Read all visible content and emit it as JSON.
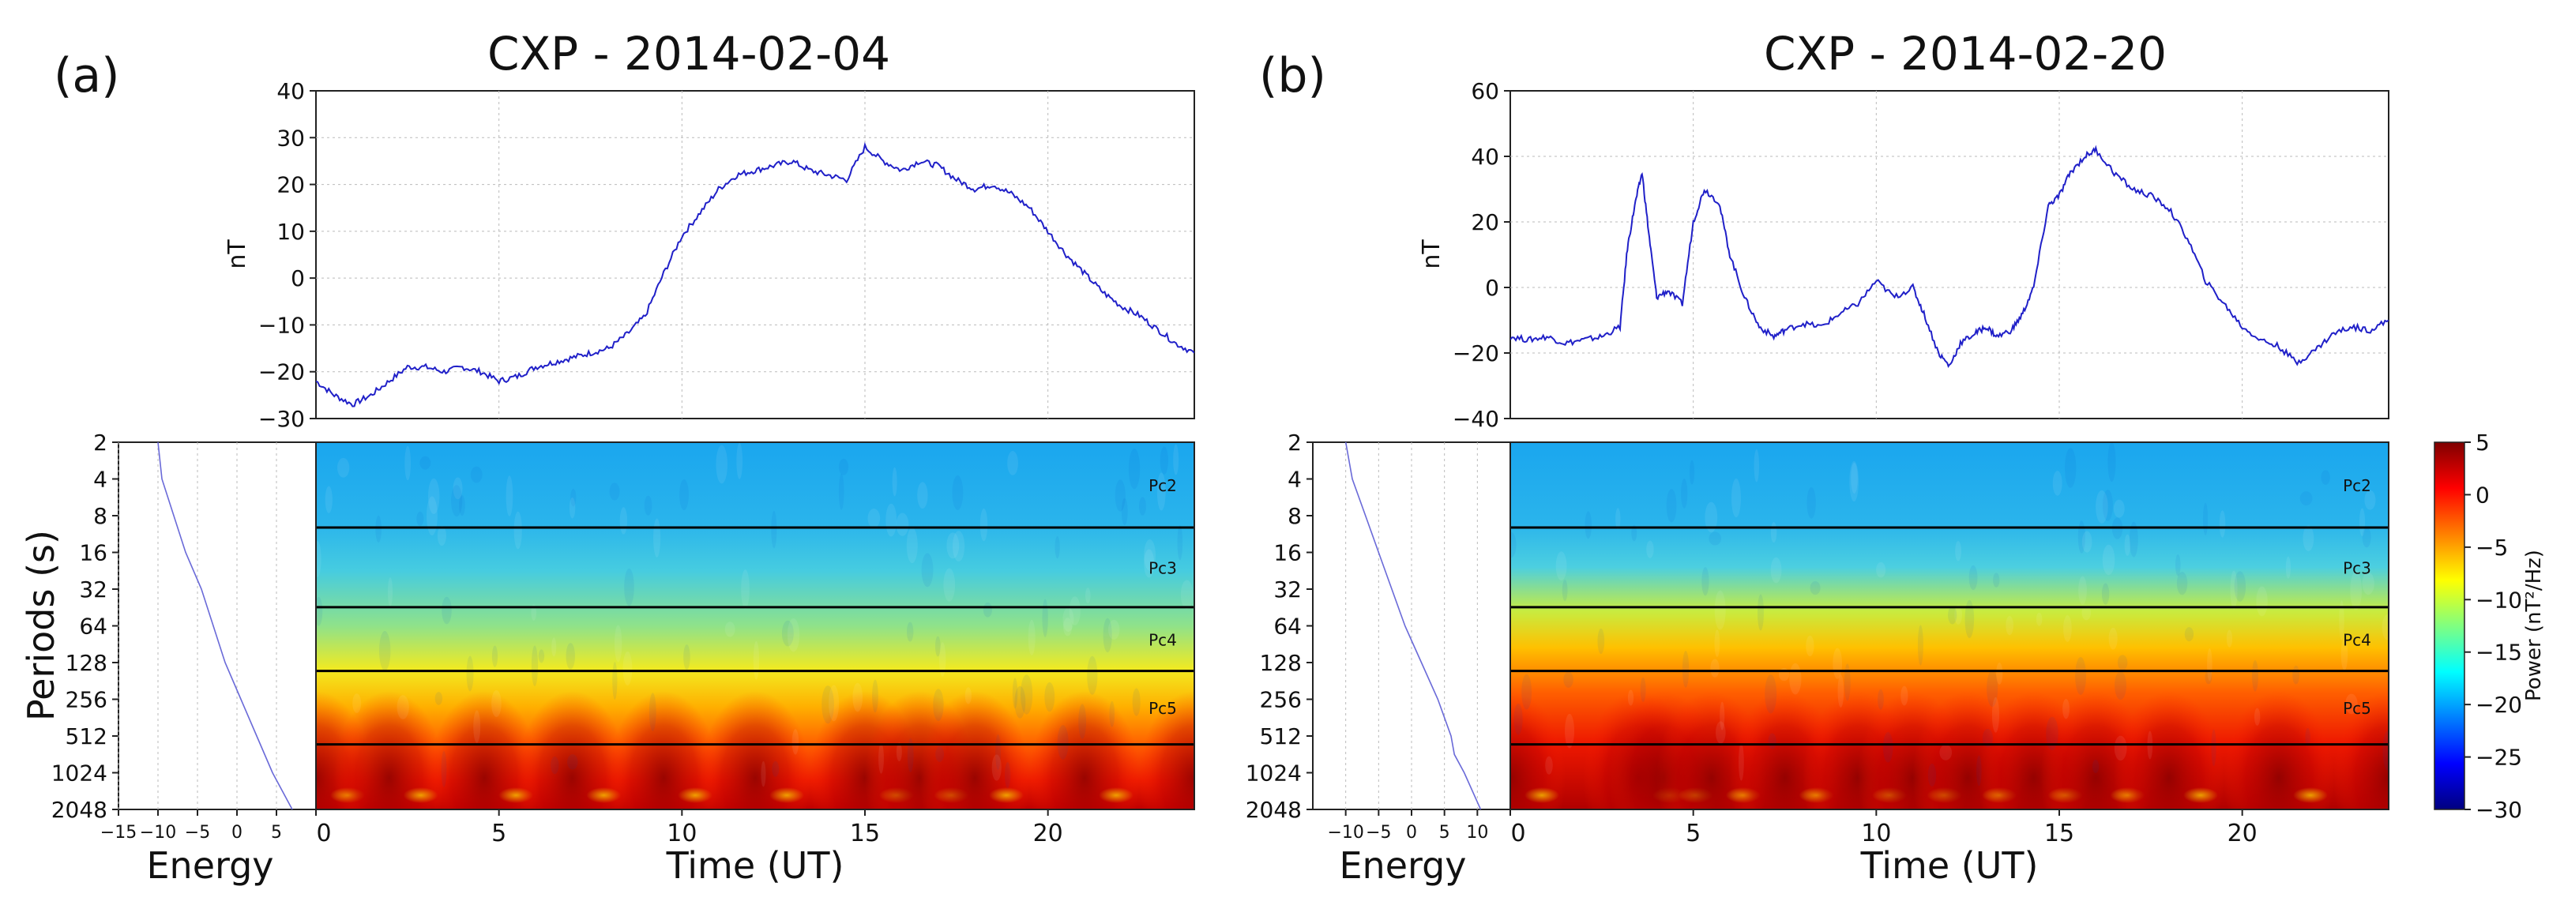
{
  "chart_data": [
    {
      "panel_label": "(a)",
      "title": "CXP - 2014-02-04",
      "line_plot": {
        "type": "line",
        "ylabel": "nT",
        "ylim": [
          -30,
          40
        ],
        "yticks": [
          -30,
          -20,
          -10,
          0,
          10,
          20,
          30,
          40
        ],
        "xlim": [
          0,
          24
        ],
        "x": [
          0,
          0.5,
          1,
          1.5,
          2,
          2.5,
          3,
          3.5,
          4,
          4.5,
          5,
          5.5,
          6,
          6.5,
          7,
          7.5,
          8,
          8.5,
          9,
          9.5,
          10,
          10.5,
          11,
          11.5,
          12,
          12.5,
          13,
          13.5,
          14,
          14.5,
          15,
          15.5,
          16,
          16.5,
          17,
          17.5,
          18,
          18.5,
          19,
          19.5,
          20,
          20.5,
          21,
          21.5,
          22,
          22.5,
          23,
          23.5,
          24
        ],
        "values": [
          -22,
          -25,
          -27,
          -25,
          -22,
          -19,
          -19,
          -20,
          -19,
          -20,
          -22,
          -21,
          -19,
          -18,
          -17,
          -16,
          -15,
          -12,
          -8,
          1,
          9,
          14,
          19,
          22,
          23,
          24,
          25,
          23,
          22,
          21,
          28,
          25,
          23,
          25,
          24,
          21,
          19,
          20,
          18,
          15,
          10,
          5,
          1,
          -3,
          -6,
          -8,
          -11,
          -14,
          -16
        ]
      },
      "spectrogram": {
        "type": "heatmap",
        "xlabel": "Time (UT)",
        "ylabel": "Periods (s)",
        "xlim": [
          0,
          24
        ],
        "xticks": [
          0,
          5,
          10,
          15,
          20
        ],
        "yticks": [
          "2",
          "4",
          "8",
          "16",
          "32",
          "64",
          "128",
          "256",
          "512",
          "1024",
          "2048"
        ],
        "band_boundaries_s": [
          10,
          45,
          150,
          600
        ],
        "bands": [
          "Pc2",
          "Pc3",
          "Pc4",
          "Pc5"
        ],
        "hot_times_ut": [
          0,
          2,
          4.6,
          7,
          9.5,
          12,
          15,
          16.5,
          18,
          21,
          24
        ]
      },
      "energy_plot": {
        "type": "line",
        "xlabel": "Energy",
        "xlim": [
          -15,
          10
        ],
        "xticks": [
          "−15",
          "−10",
          "−5",
          "0",
          "5"
        ],
        "period_log2": [
          1,
          2,
          3,
          4,
          5,
          6,
          7,
          8,
          9,
          10,
          11
        ],
        "values": [
          -10,
          -9.5,
          -8,
          -6.5,
          -4.5,
          -3,
          -1.5,
          0.5,
          2.5,
          4.5,
          7
        ]
      }
    },
    {
      "panel_label": "(b)",
      "title": "CXP - 2014-02-20",
      "line_plot": {
        "type": "line",
        "ylabel": "nT",
        "ylim": [
          -40,
          60
        ],
        "yticks": [
          -40,
          -20,
          0,
          20,
          40,
          60
        ],
        "xlim": [
          0,
          24
        ],
        "x": [
          0,
          0.5,
          1,
          1.5,
          2,
          2.5,
          3,
          3.2,
          3.4,
          3.6,
          3.8,
          4.0,
          4.3,
          4.7,
          5,
          5.3,
          5.7,
          6.0,
          6.4,
          6.8,
          7.2,
          7.5,
          8,
          8.5,
          9,
          9.5,
          10,
          10.5,
          11,
          11.3,
          11.7,
          12,
          12.3,
          12.7,
          13,
          13.3,
          13.7,
          14,
          14.3,
          14.7,
          15,
          15.3,
          15.7,
          16,
          16.5,
          17,
          17.5,
          18,
          18.5,
          19,
          19.5,
          20,
          20.5,
          21,
          21.5,
          22,
          22.5,
          23,
          23.5,
          24
        ],
        "values": [
          -15,
          -16,
          -15,
          -17,
          -16,
          -15,
          -12,
          12,
          25,
          35,
          15,
          -3,
          -1,
          -5,
          20,
          30,
          26,
          10,
          -3,
          -12,
          -15,
          -13,
          -11,
          -12,
          -8,
          -5,
          2,
          -3,
          0,
          -8,
          -20,
          -24,
          -17,
          -14,
          -12,
          -15,
          -13,
          -8,
          0,
          25,
          28,
          35,
          40,
          42,
          35,
          30,
          28,
          24,
          15,
          2,
          -5,
          -12,
          -16,
          -18,
          -23,
          -19,
          -14,
          -12,
          -13,
          -10
        ]
      },
      "spectrogram": {
        "type": "heatmap",
        "xlabel": "Time (UT)",
        "ylabel": "",
        "xlim": [
          0,
          24
        ],
        "xticks": [
          0,
          5,
          10,
          15,
          20
        ],
        "yticks": [
          "2",
          "4",
          "8",
          "16",
          "32",
          "64",
          "128",
          "256",
          "512",
          "1024",
          "2048"
        ],
        "band_boundaries_s": [
          10,
          45,
          150,
          600
        ],
        "bands": [
          "Pc2",
          "Pc3",
          "Pc4",
          "Pc5"
        ],
        "hot_times_ut": [
          0,
          3.5,
          4.2,
          5.5,
          7.5,
          9.5,
          11,
          12.5,
          14.3,
          16,
          18,
          21,
          24
        ]
      },
      "energy_plot": {
        "type": "line",
        "xlabel": "Energy",
        "xlim": [
          -15,
          15
        ],
        "xticks": [
          "−10",
          "−5",
          "0",
          "5",
          "10"
        ],
        "period_log2": [
          1,
          2,
          3,
          4,
          5,
          6,
          7,
          8,
          9,
          9.5,
          10,
          11
        ],
        "values": [
          -10,
          -9,
          -7,
          -5,
          -3,
          -1,
          1.5,
          4,
          6,
          6.5,
          8,
          10.5
        ]
      }
    }
  ],
  "colorbar": {
    "label": "Power (nT²/Hz)",
    "range": [
      -30,
      5
    ],
    "ticks": [
      "5",
      "0",
      "−5",
      "−10",
      "−15",
      "−20",
      "−25",
      "−30"
    ],
    "colors": [
      "#00007f",
      "#0000ff",
      "#0080ff",
      "#00ffff",
      "#80ff80",
      "#ffff00",
      "#ff8000",
      "#ff0000",
      "#7f0000"
    ]
  }
}
